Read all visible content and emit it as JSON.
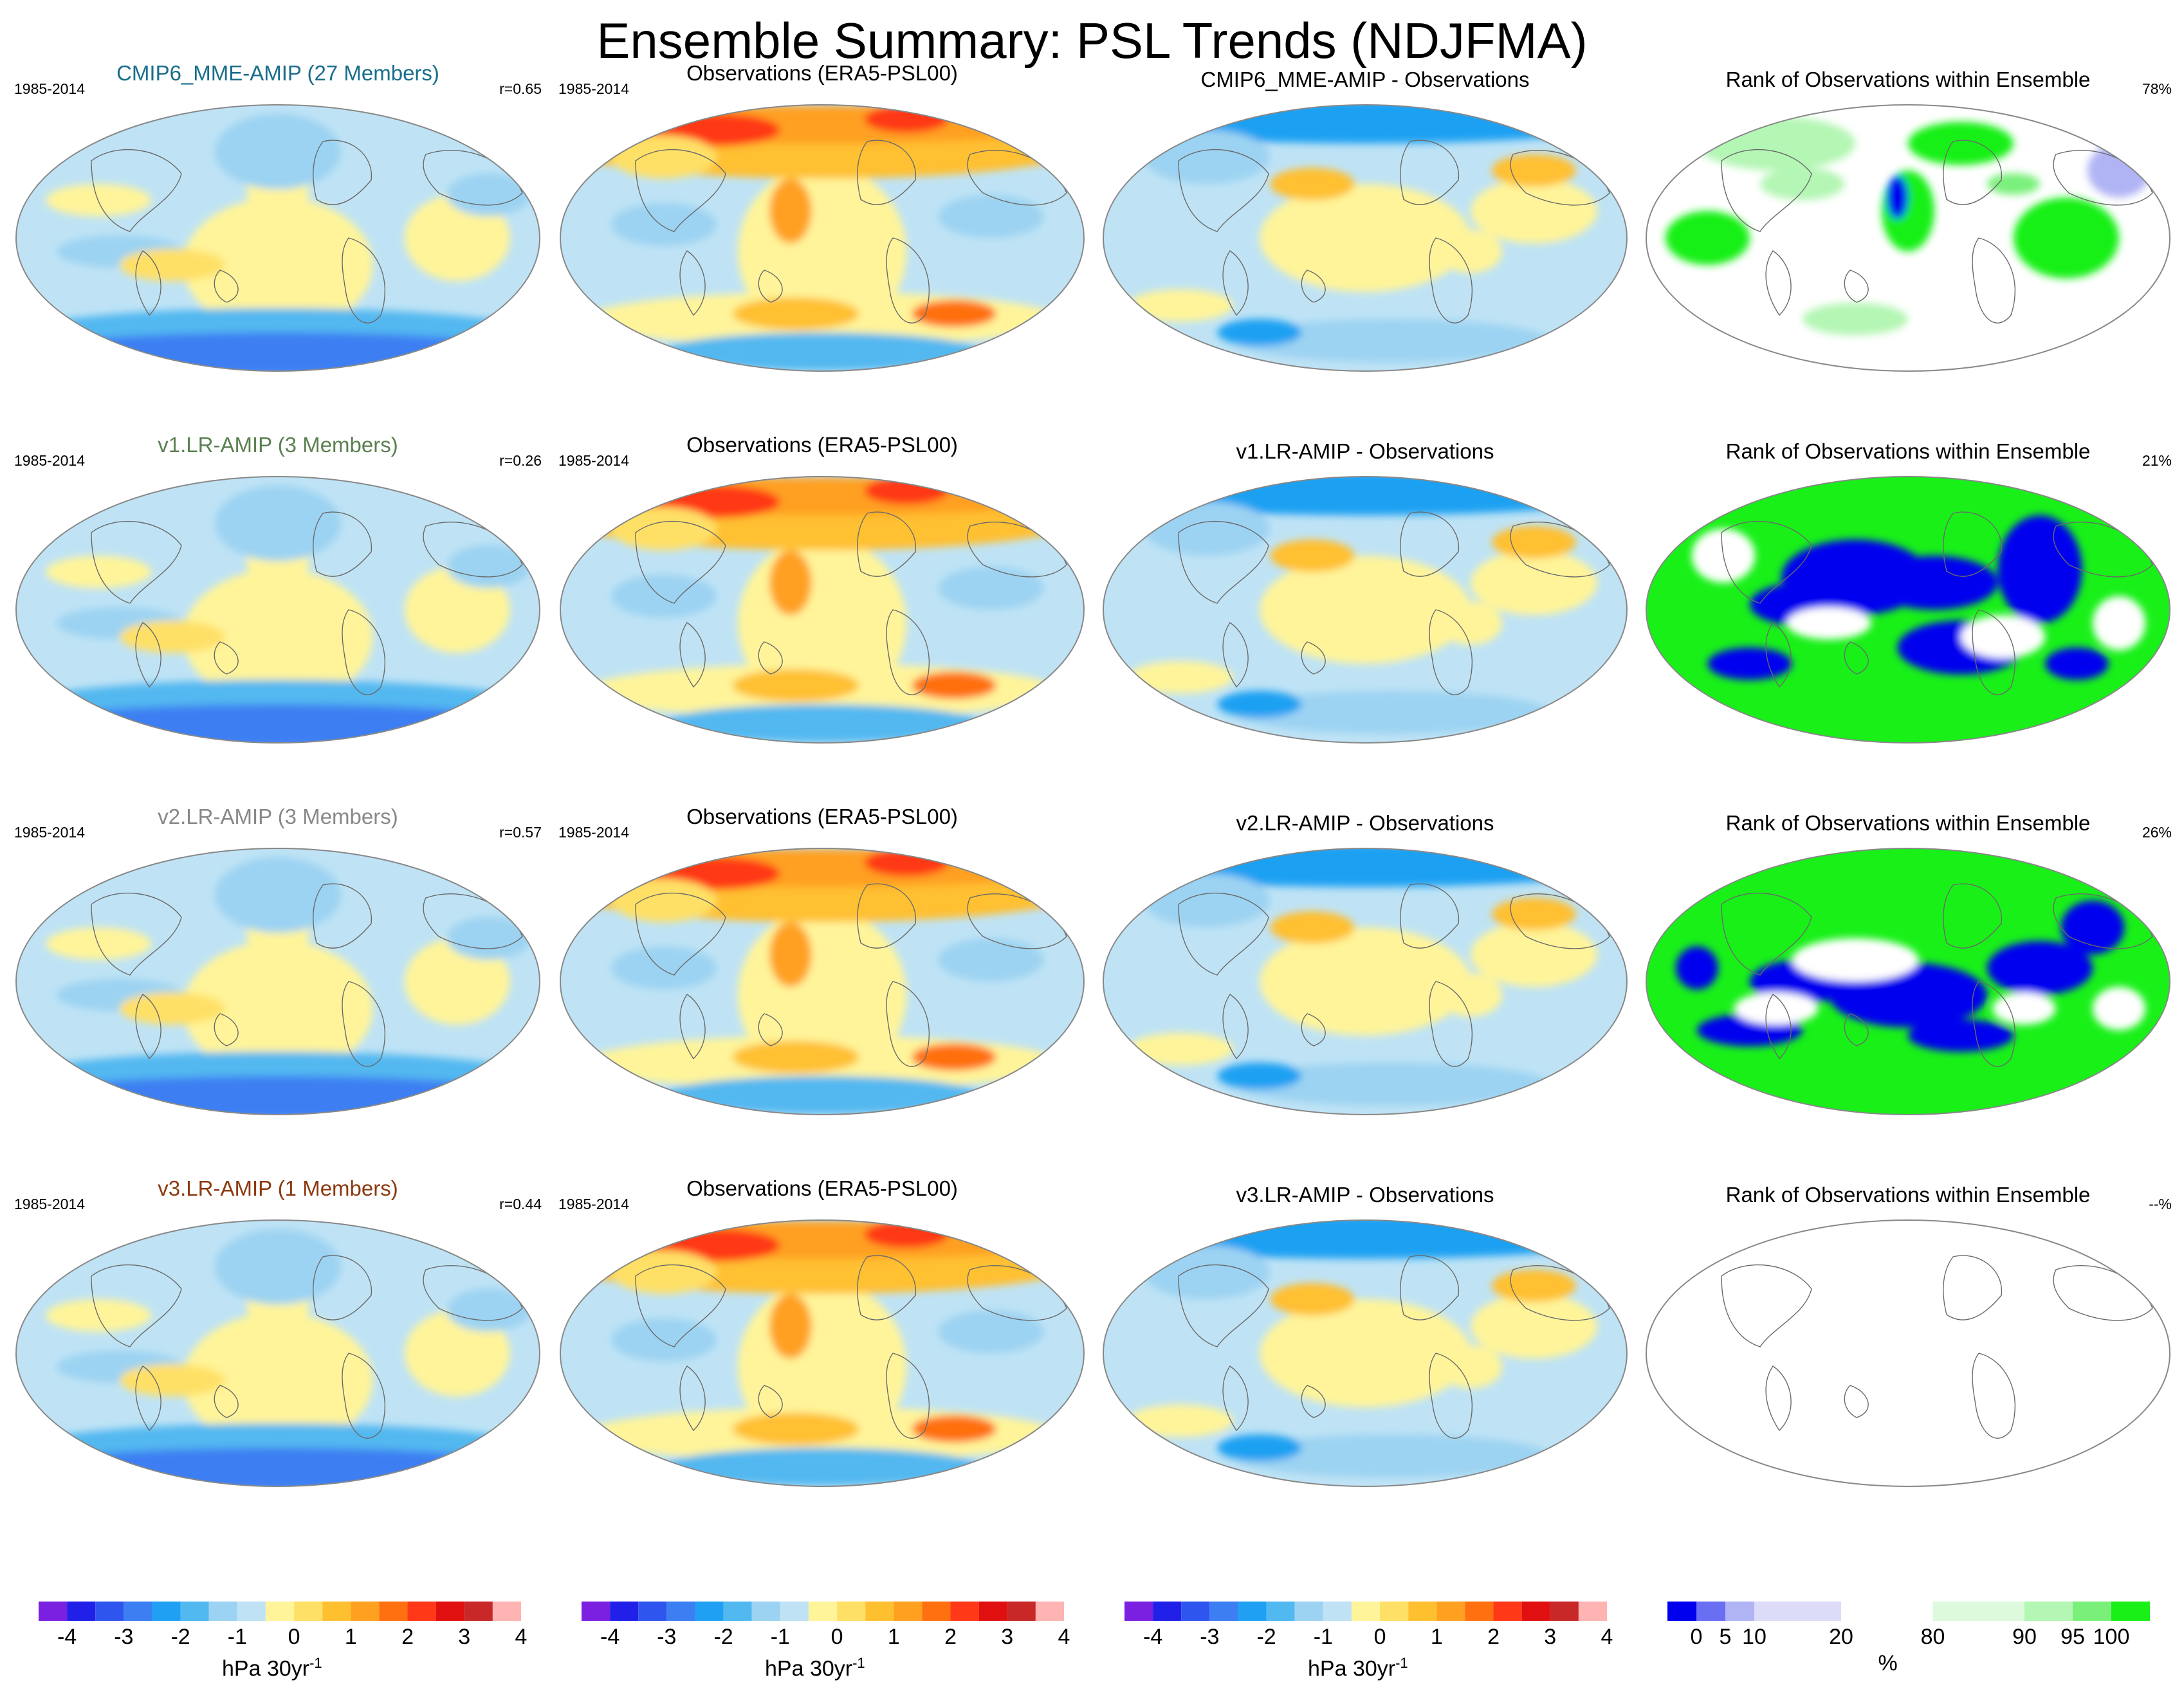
{
  "title": "Ensemble Summary: PSL Trends (NDJFMA)",
  "period": "1985-2014",
  "colors": {
    "trend_scale": [
      "#7b1fe0",
      "#2020e8",
      "#2e55ee",
      "#3c7ff2",
      "#1fa0f2",
      "#52b8f0",
      "#9cd3f2",
      "#bfe3f5",
      "#fff49a",
      "#ffe066",
      "#ffc030",
      "#ffa020",
      "#ff7010",
      "#ff3818",
      "#e01010",
      "#c82828",
      "#ffb4b4"
    ],
    "rank_scale": [
      "#0000ee",
      "#6a6ef2",
      "#b0b4f4",
      "#dcdcf8",
      "#ffffff",
      "#ddfadd",
      "#b4f6b4",
      "#7af07a",
      "#18f018"
    ],
    "model_title_colors": [
      "#1a6d8c",
      "#5b8050",
      "#888888",
      "#8b3a10"
    ]
  },
  "rows": [
    {
      "model_title": "CMIP6_MME-AMIP (27 Members)",
      "r": "r=0.65",
      "obs_title": "Observations (ERA5-PSL00)",
      "diff_title": "CMIP6_MME-AMIP - Observations",
      "rank_title": "Rank of Observations within Ensemble",
      "rank_pct": "78%"
    },
    {
      "model_title": "v1.LR-AMIP (3 Members)",
      "r": "r=0.26",
      "obs_title": "Observations (ERA5-PSL00)",
      "diff_title": "v1.LR-AMIP - Observations",
      "rank_title": "Rank of Observations within Ensemble",
      "rank_pct": "21%"
    },
    {
      "model_title": "v2.LR-AMIP (3 Members)",
      "r": "r=0.57",
      "obs_title": "Observations (ERA5-PSL00)",
      "diff_title": "v2.LR-AMIP - Observations",
      "rank_title": "Rank of Observations within Ensemble",
      "rank_pct": "26%"
    },
    {
      "model_title": "v3.LR-AMIP (1 Members)",
      "r": "r=0.44",
      "obs_title": "Observations (ERA5-PSL00)",
      "diff_title": "v3.LR-AMIP - Observations",
      "rank_title": "Rank of Observations within Ensemble",
      "rank_pct": "--%"
    }
  ],
  "colorbars": {
    "trend": {
      "ticks": [
        "-4",
        "-3",
        "-2",
        "-1",
        "0",
        "1",
        "2",
        "3",
        "4"
      ],
      "label": "hPa 30yr",
      "label_sup": "-1"
    },
    "rank": {
      "ticks": [
        "0",
        "5",
        "10",
        "20",
        "80",
        "90",
        "95",
        "100"
      ],
      "label": "%"
    }
  }
}
